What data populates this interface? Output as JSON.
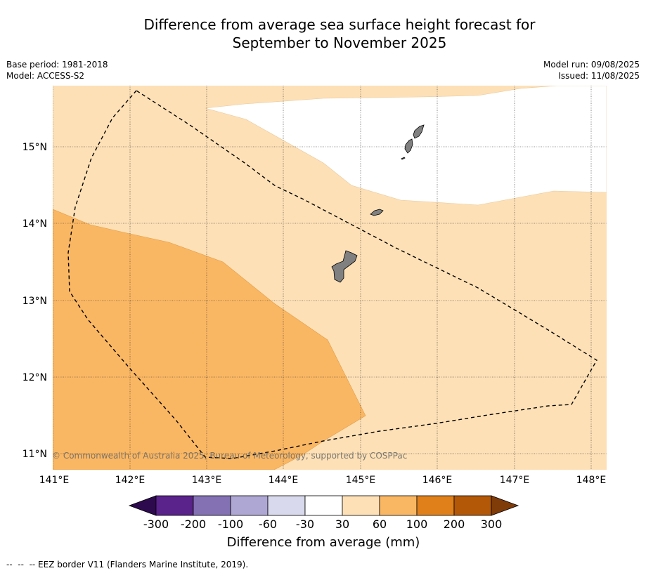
{
  "title_line1": "Difference from average sea surface height forecast for",
  "title_line2": "September to November 2025",
  "meta_left": {
    "base_period": "Base period: 1981-2018",
    "model": "Model: ACCESS-S2"
  },
  "meta_right": {
    "model_run": "Model run: 09/08/2025",
    "issued": "Issued: 11/08/2025"
  },
  "map": {
    "lon_labels": [
      "141°E",
      "142°E",
      "143°E",
      "144°E",
      "145°E",
      "146°E",
      "147°E",
      "148°E"
    ],
    "lat_labels": [
      "15°N",
      "14°N",
      "13°N",
      "12°N",
      "11°N"
    ],
    "copyright": "© Commonwealth of Australia 2025, Bureau of Meteorology, supported by COSPPac",
    "land_color": "#808080"
  },
  "colorbar": {
    "colors": [
      "#2d0a4e",
      "#5a228b",
      "#8371b4",
      "#aea6d3",
      "#d8d9ec",
      "#ffffff",
      "#fde0b6",
      "#fab763",
      "#e0801a",
      "#b35806",
      "#7f3b08"
    ],
    "labels": [
      "-300",
      "-200",
      "-100",
      "-60",
      "-30",
      "30",
      "60",
      "100",
      "200",
      "300"
    ],
    "title": "Difference from average (mm)"
  },
  "footnote": "--  --  -- EEZ border V11 (Flanders Marine Institute, 2019)."
}
